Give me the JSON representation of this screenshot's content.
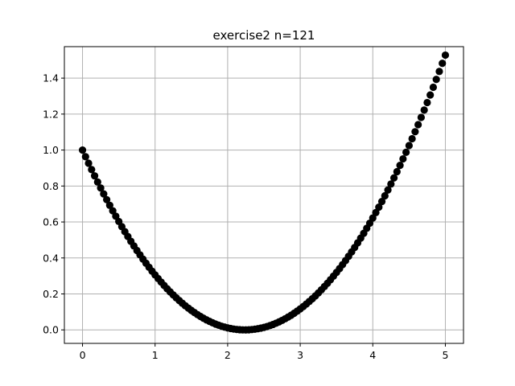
{
  "chart_data": {
    "type": "scatter",
    "title": "exercise2 n=121",
    "xlabel": "",
    "ylabel": "",
    "xlim": [
      -0.25,
      5.25
    ],
    "ylim": [
      -0.075,
      1.575
    ],
    "xticks": [
      0,
      1,
      2,
      3,
      4,
      5
    ],
    "xtick_labels": [
      "0",
      "1",
      "2",
      "3",
      "4",
      "5"
    ],
    "yticks": [
      0.0,
      0.2,
      0.4,
      0.6,
      0.8,
      1.0,
      1.2,
      1.4
    ],
    "ytick_labels": [
      "0.0",
      "0.2",
      "0.4",
      "0.6",
      "0.8",
      "1.0",
      "1.2",
      "1.4"
    ],
    "grid": true,
    "marker_color": "#000000",
    "x_range": {
      "start": 0,
      "end": 5,
      "count": 121
    },
    "y_curve": "0.2*(x-2.236)^2 (approx.)"
  }
}
